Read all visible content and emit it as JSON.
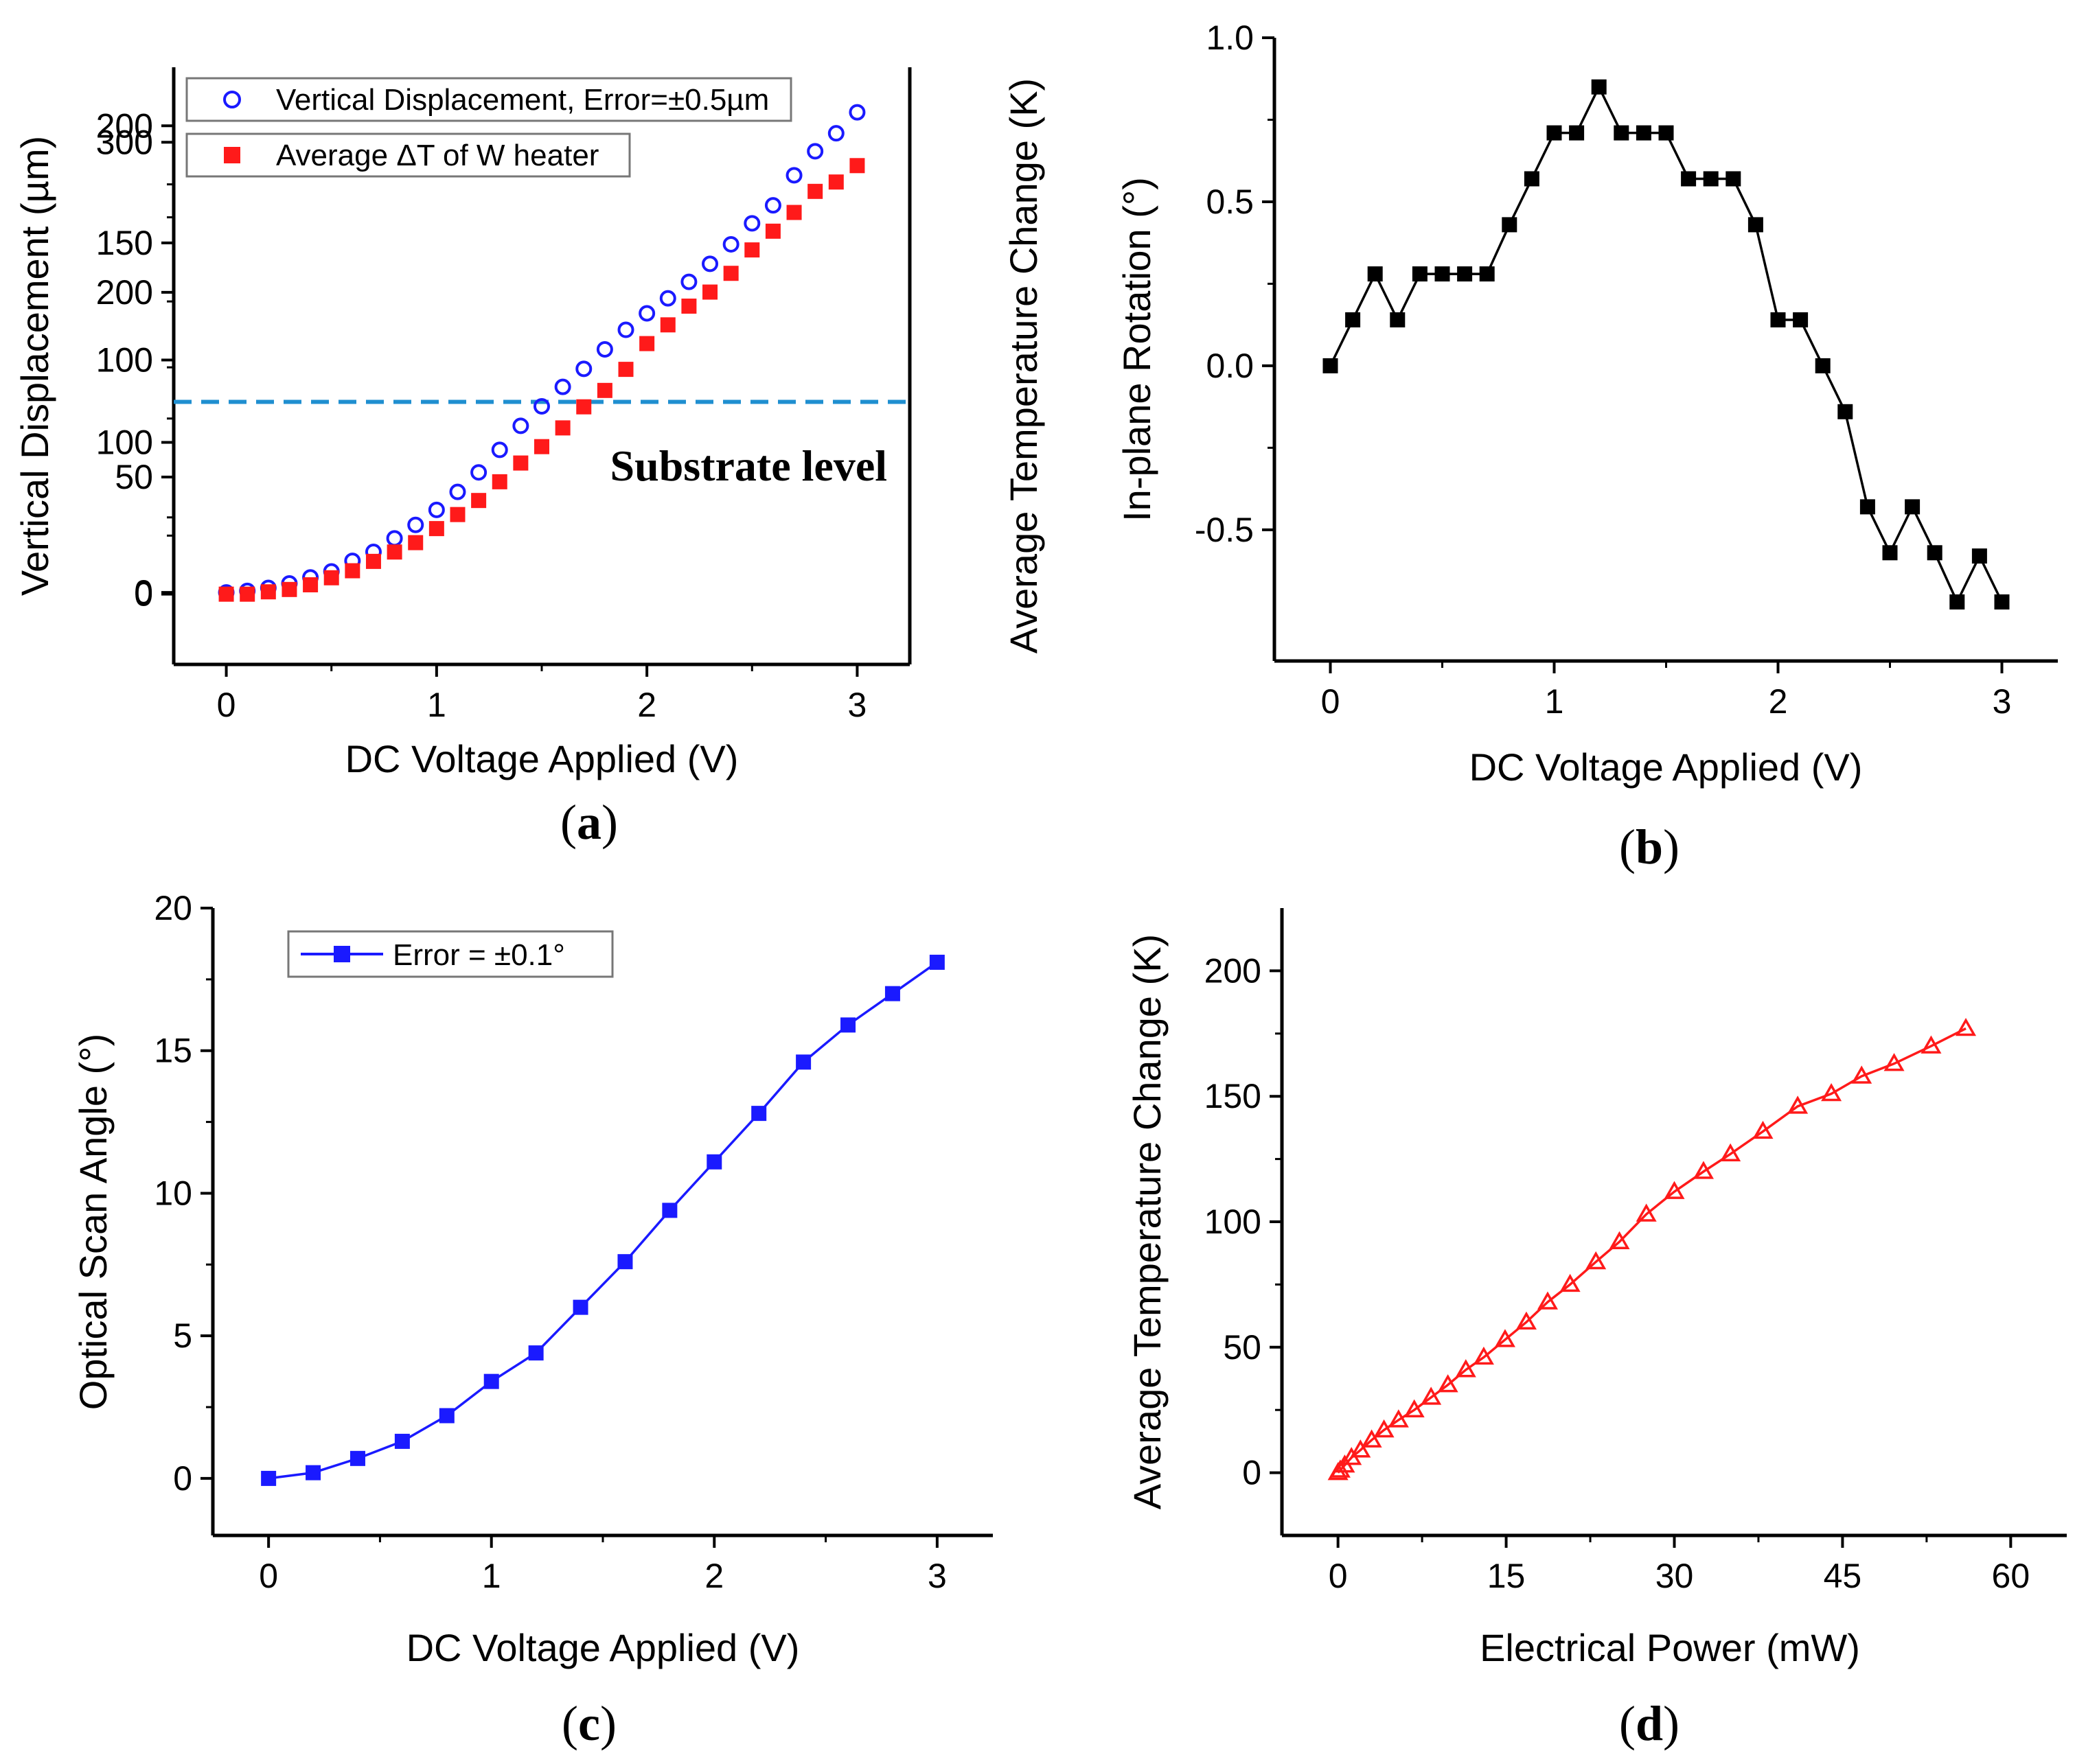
{
  "chart_data": [
    {
      "id": "a",
      "type": "scatter",
      "caption": "a",
      "xlabel": "DC Voltage Applied (V)",
      "ylabel": "Vertical Displacement (µm)",
      "ylabel_right": "Average Temperature Change (K)",
      "xlim": [
        -0.25,
        3.25
      ],
      "ylim": [
        -48,
        350
      ],
      "ylim_right": [
        -30,
        225
      ],
      "x_ticks": [
        0,
        1,
        2,
        3
      ],
      "y_ticks": [
        0,
        100,
        200,
        300
      ],
      "y_ticks_right": [
        0,
        50,
        100,
        150,
        200
      ],
      "series": [
        {
          "name": "Vertical Displacement, Error=±0.5µm",
          "marker": "open-circle",
          "color": "#1a1aff",
          "axis": "left",
          "x": [
            0,
            0.1,
            0.2,
            0.3,
            0.4,
            0.5,
            0.6,
            0.7,
            0.8,
            0.9,
            1.0,
            1.1,
            1.2,
            1.3,
            1.4,
            1.5,
            1.6,
            1.7,
            1.8,
            1.9,
            2.0,
            2.1,
            2.2,
            2.3,
            2.4,
            2.5,
            2.6,
            2.7,
            2.8,
            2.9,
            3.0
          ],
          "values": [
            0,
            1,
            3,
            6,
            10,
            14,
            21,
            27,
            36,
            45,
            55,
            67,
            80,
            95,
            111,
            124,
            137,
            149,
            162,
            175,
            186,
            196,
            207,
            219,
            232,
            246,
            258,
            278,
            294,
            306,
            320
          ]
        },
        {
          "name": "Average ΔT of W heater",
          "marker": "filled-square",
          "color": "#ff1a1a",
          "axis": "right",
          "x": [
            0,
            0.1,
            0.2,
            0.3,
            0.4,
            0.5,
            0.6,
            0.7,
            0.8,
            0.9,
            1.0,
            1.1,
            1.2,
            1.3,
            1.4,
            1.5,
            1.6,
            1.7,
            1.8,
            1.9,
            2.0,
            2.1,
            2.2,
            2.3,
            2.4,
            2.5,
            2.6,
            2.7,
            2.8,
            2.9,
            3.0
          ],
          "values": [
            0,
            0,
            1,
            2,
            4,
            7,
            10,
            14,
            18,
            22,
            28,
            34,
            40,
            48,
            56,
            63,
            71,
            80,
            87,
            96,
            107,
            115,
            123,
            129,
            137,
            147,
            155,
            163,
            172,
            176,
            183
          ]
        }
      ],
      "reference_line": {
        "y": 127,
        "label": "Substrate level",
        "color": "#1f8fd0",
        "style": "dashed"
      }
    },
    {
      "id": "b",
      "type": "line",
      "caption": "b",
      "xlabel": "DC Voltage Applied (V)",
      "ylabel": "In-plane Rotation (°)",
      "xlim": [
        -0.25,
        3.25
      ],
      "ylim": [
        -0.9,
        1.0
      ],
      "x_ticks": [
        0,
        1,
        2,
        3
      ],
      "y_ticks": [
        -0.5,
        0.0,
        0.5,
        1.0
      ],
      "y_tick_labels": [
        "-0.5",
        "0.0",
        "0.5",
        "1.0"
      ],
      "series": [
        {
          "name": "In-plane Rotation",
          "marker": "filled-square",
          "color": "#000000",
          "x": [
            0,
            0.1,
            0.2,
            0.3,
            0.4,
            0.5,
            0.6,
            0.7,
            0.8,
            0.9,
            1.0,
            1.1,
            1.2,
            1.3,
            1.4,
            1.5,
            1.6,
            1.7,
            1.8,
            1.9,
            2.0,
            2.1,
            2.2,
            2.3,
            2.4,
            2.5,
            2.6,
            2.7,
            2.8,
            2.9,
            3.0
          ],
          "values": [
            0,
            0.14,
            0.28,
            0.14,
            0.28,
            0.28,
            0.28,
            0.28,
            0.43,
            0.57,
            0.71,
            0.71,
            0.85,
            0.71,
            0.71,
            0.71,
            0.57,
            0.57,
            0.57,
            0.43,
            0.14,
            0.14,
            0.0,
            -0.14,
            -0.43,
            -0.57,
            -0.43,
            -0.57,
            -0.72,
            -0.58,
            -0.72
          ]
        }
      ]
    },
    {
      "id": "c",
      "type": "line",
      "caption": "c",
      "xlabel": "DC Voltage Applied (V)",
      "ylabel": "Optical Scan Angle (°)",
      "xlim": [
        -0.25,
        3.25
      ],
      "ylim": [
        -2,
        20
      ],
      "x_ticks": [
        0,
        1,
        2,
        3
      ],
      "y_ticks": [
        0,
        5,
        10,
        15,
        20
      ],
      "series": [
        {
          "name": "Error = ±0.1°",
          "marker": "filled-square",
          "color": "#1a1aff",
          "x": [
            0,
            0.2,
            0.4,
            0.6,
            0.8,
            1.0,
            1.2,
            1.4,
            1.6,
            1.8,
            2.0,
            2.2,
            2.4,
            2.6,
            2.8,
            3.0
          ],
          "values": [
            0.0,
            0.2,
            0.7,
            1.3,
            2.2,
            3.4,
            4.4,
            6.0,
            7.6,
            9.4,
            11.1,
            12.8,
            14.6,
            15.9,
            17.0,
            18.1
          ]
        }
      ]
    },
    {
      "id": "d",
      "type": "line",
      "caption": "d",
      "xlabel": "Electrical Power (mW)",
      "ylabel": "Average Temperature Change (K)",
      "xlim": [
        -5,
        65
      ],
      "ylim": [
        -25,
        225
      ],
      "x_ticks": [
        0,
        15,
        30,
        45,
        60
      ],
      "y_ticks": [
        0,
        50,
        100,
        150,
        200
      ],
      "series": [
        {
          "name": "Average Temperature Change",
          "marker": "open-triangle",
          "color": "#ff1a1a",
          "x": [
            0,
            0.2,
            0.6,
            1.2,
            2.0,
            3.0,
            4.1,
            5.4,
            6.8,
            8.3,
            9.8,
            11.4,
            13.0,
            14.9,
            16.8,
            18.7,
            20.7,
            23.0,
            25.1,
            27.5,
            30.0,
            32.6,
            35.0,
            37.9,
            41.0,
            44.0,
            46.7,
            49.6,
            52.9,
            56.0
          ],
          "values": [
            0,
            1,
            3,
            6,
            9,
            13,
            17,
            21,
            25,
            30,
            35,
            41,
            46,
            53,
            60,
            68,
            75,
            84,
            92,
            103,
            112,
            120,
            127,
            136,
            146,
            151,
            158,
            163,
            170,
            177
          ]
        }
      ]
    }
  ]
}
